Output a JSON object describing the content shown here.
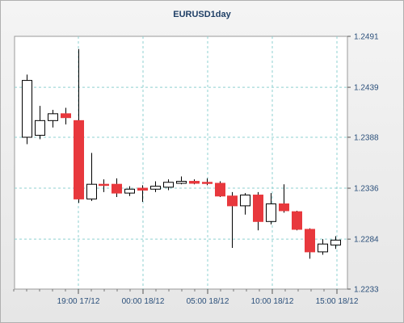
{
  "chart_data": {
    "type": "candlestick",
    "title": "EURUSD1day",
    "y_ticks": [
      "1.2233",
      "1.2284",
      "1.2336",
      "1.2388",
      "1.2439",
      "1.2491"
    ],
    "ylim": [
      1.2233,
      1.2491
    ],
    "x_ticks": [
      "19:00 17/12",
      "00:00 18/12",
      "05:00 18/12",
      "10:00 18/12",
      "15:00 18/12"
    ],
    "grid": true,
    "colors": {
      "bull_fill": "#ffffff",
      "bear_fill": "#e8383d",
      "outline": "#000000",
      "grid": "#8fd0d0"
    },
    "candles": [
      {
        "open": 1.2388,
        "high": 1.2452,
        "low": 1.2381,
        "close": 1.2446
      },
      {
        "open": 1.239,
        "high": 1.242,
        "low": 1.2386,
        "close": 1.2405
      },
      {
        "open": 1.2405,
        "high": 1.2416,
        "low": 1.2398,
        "close": 1.2412
      },
      {
        "open": 1.2412,
        "high": 1.2418,
        "low": 1.2401,
        "close": 1.2408
      },
      {
        "open": 1.2405,
        "high": 1.2478,
        "low": 1.2321,
        "close": 1.2325
      },
      {
        "open": 1.2325,
        "high": 1.2372,
        "low": 1.2323,
        "close": 1.234
      },
      {
        "open": 1.234,
        "high": 1.2345,
        "low": 1.2332,
        "close": 1.2339
      },
      {
        "open": 1.234,
        "high": 1.2346,
        "low": 1.2327,
        "close": 1.2331
      },
      {
        "open": 1.2331,
        "high": 1.2338,
        "low": 1.2328,
        "close": 1.2335
      },
      {
        "open": 1.2336,
        "high": 1.2339,
        "low": 1.2322,
        "close": 1.2334
      },
      {
        "open": 1.2335,
        "high": 1.2343,
        "low": 1.2332,
        "close": 1.2338
      },
      {
        "open": 1.2337,
        "high": 1.2345,
        "low": 1.2334,
        "close": 1.2342
      },
      {
        "open": 1.2341,
        "high": 1.2348,
        "low": 1.234,
        "close": 1.2343
      },
      {
        "open": 1.2343,
        "high": 1.2345,
        "low": 1.234,
        "close": 1.2341
      },
      {
        "open": 1.2342,
        "high": 1.2346,
        "low": 1.2339,
        "close": 1.2341
      },
      {
        "open": 1.2341,
        "high": 1.2343,
        "low": 1.2327,
        "close": 1.2328
      },
      {
        "open": 1.2328,
        "high": 1.2332,
        "low": 1.2275,
        "close": 1.2318
      },
      {
        "open": 1.2318,
        "high": 1.2331,
        "low": 1.2309,
        "close": 1.2329
      },
      {
        "open": 1.2329,
        "high": 1.2332,
        "low": 1.2293,
        "close": 1.2302
      },
      {
        "open": 1.2302,
        "high": 1.2331,
        "low": 1.2299,
        "close": 1.232
      },
      {
        "open": 1.232,
        "high": 1.234,
        "low": 1.2311,
        "close": 1.2313
      },
      {
        "open": 1.2312,
        "high": 1.2313,
        "low": 1.2293,
        "close": 1.2294
      },
      {
        "open": 1.2294,
        "high": 1.2295,
        "low": 1.2264,
        "close": 1.2271
      },
      {
        "open": 1.2271,
        "high": 1.2284,
        "low": 1.2268,
        "close": 1.2279
      },
      {
        "open": 1.2278,
        "high": 1.2287,
        "low": 1.2274,
        "close": 1.2283
      }
    ]
  }
}
